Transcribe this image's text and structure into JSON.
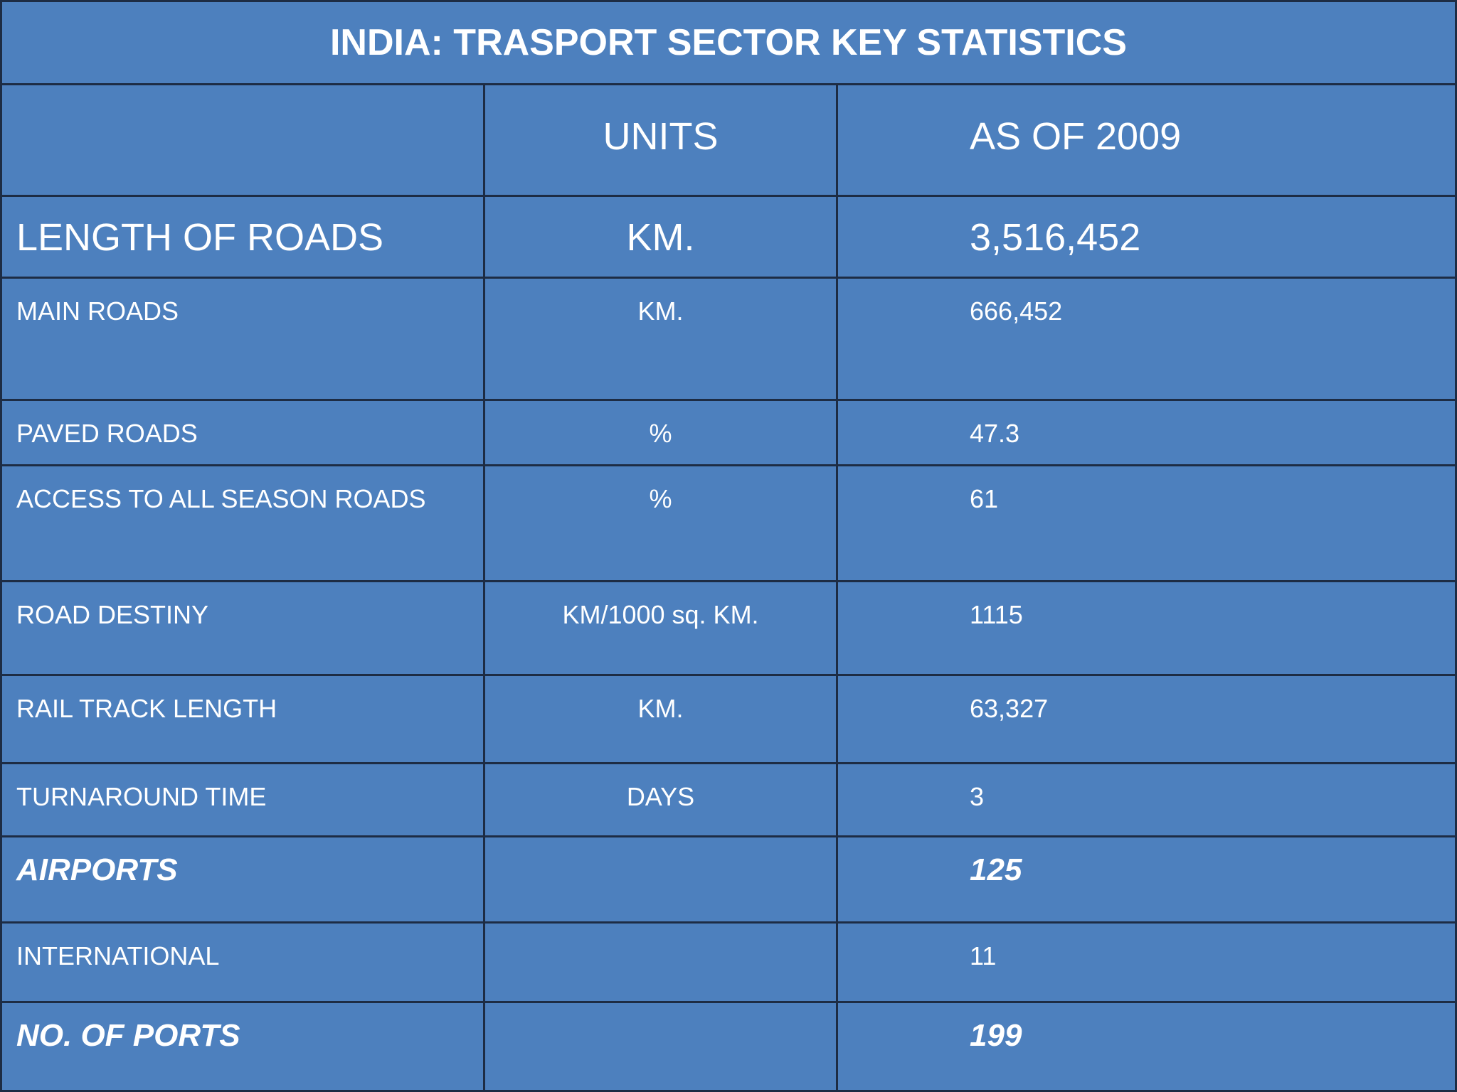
{
  "title": "INDIA: TRASPORT SECTOR KEY STATISTICS",
  "table": {
    "header": [
      "UNITS",
      "AS OF 2009"
    ],
    "rows": [
      {
        "label": "LENGTH OF ROADS",
        "units": "KM.",
        "value": "3,516,452"
      },
      {
        "label": "MAIN ROADS",
        "units": "KM.",
        "value": "666,452"
      },
      {
        "label": "PAVED ROADS",
        "units": "%",
        "value": "47.3"
      },
      {
        "label": "ACCESS TO ALL SEASON ROADS",
        "units": "%",
        "value": "61"
      },
      {
        "label": "ROAD DESTINY",
        "units": "KM/1000 sq. KM.",
        "value": "1115"
      },
      {
        "label": "RAIL TRACK LENGTH",
        "units": "KM.",
        "value": "63,327"
      },
      {
        "label": "TURNAROUND TIME",
        "units": "DAYS",
        "value": "3"
      },
      {
        "label": "AIRPORTS",
        "value": "125"
      },
      {
        "label": "INTERNATIONAL",
        "value": "11"
      },
      {
        "label": "NO. OF PORTS",
        "value": "199"
      }
    ]
  }
}
